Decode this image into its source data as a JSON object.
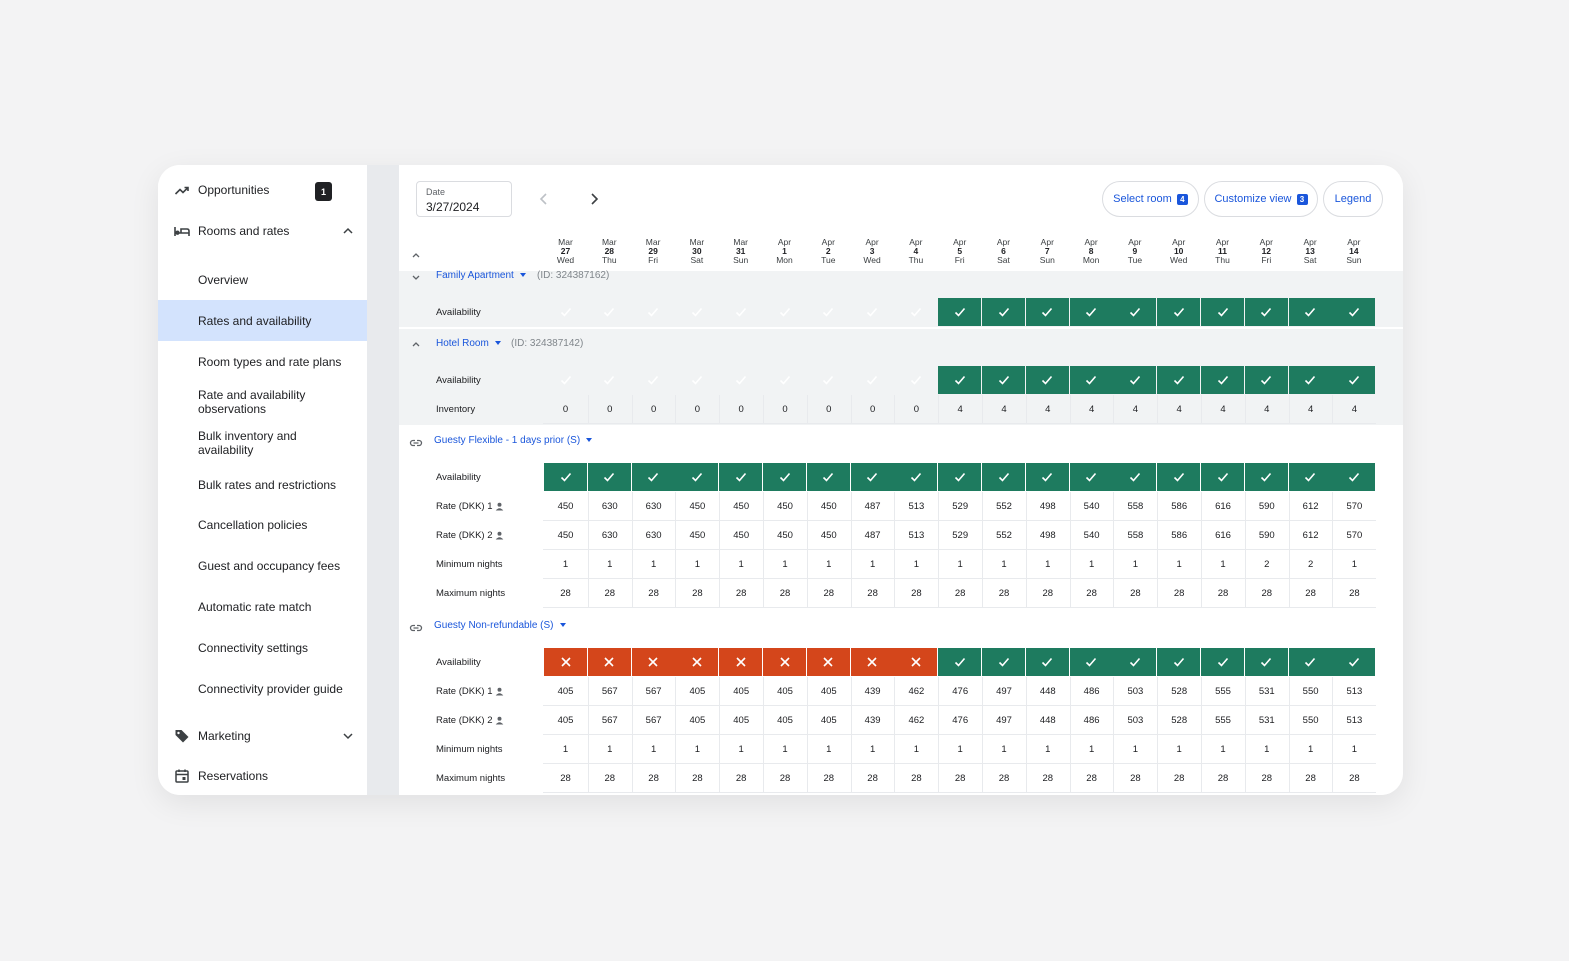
{
  "sidebar": {
    "opportunities": {
      "label": "Opportunities",
      "badge": "1"
    },
    "rooms_and_rates": {
      "label": "Rooms and rates"
    },
    "items": [
      {
        "label": "Overview"
      },
      {
        "label": "Rates and availability"
      },
      {
        "label": "Room types and rate plans"
      },
      {
        "label": "Rate and availability observations"
      },
      {
        "label": "Bulk inventory and availability"
      },
      {
        "label": "Bulk rates and restrictions"
      },
      {
        "label": "Cancellation policies"
      },
      {
        "label": "Guest and occupancy fees"
      },
      {
        "label": "Automatic rate match"
      },
      {
        "label": "Connectivity settings"
      },
      {
        "label": "Connectivity provider guide"
      }
    ],
    "marketing": {
      "label": "Marketing"
    },
    "reservations": {
      "label": "Reservations"
    }
  },
  "toolbar": {
    "date_label": "Date",
    "date_value": "3/27/2024",
    "select_room": {
      "label": "Select room",
      "count": "4"
    },
    "customize_view": {
      "label": "Customize view",
      "count": "3"
    },
    "legend": {
      "label": "Legend"
    }
  },
  "days": [
    {
      "month": "Mar",
      "day": "27",
      "dow": "Wed"
    },
    {
      "month": "Mar",
      "day": "28",
      "dow": "Thu"
    },
    {
      "month": "Mar",
      "day": "29",
      "dow": "Fri"
    },
    {
      "month": "Mar",
      "day": "30",
      "dow": "Sat"
    },
    {
      "month": "Mar",
      "day": "31",
      "dow": "Sun"
    },
    {
      "month": "Apr",
      "day": "1",
      "dow": "Mon"
    },
    {
      "month": "Apr",
      "day": "2",
      "dow": "Tue"
    },
    {
      "month": "Apr",
      "day": "3",
      "dow": "Wed"
    },
    {
      "month": "Apr",
      "day": "4",
      "dow": "Thu"
    },
    {
      "month": "Apr",
      "day": "5",
      "dow": "Fri"
    },
    {
      "month": "Apr",
      "day": "6",
      "dow": "Sat"
    },
    {
      "month": "Apr",
      "day": "7",
      "dow": "Sun"
    },
    {
      "month": "Apr",
      "day": "8",
      "dow": "Mon"
    },
    {
      "month": "Apr",
      "day": "9",
      "dow": "Tue"
    },
    {
      "month": "Apr",
      "day": "10",
      "dow": "Wed"
    },
    {
      "month": "Apr",
      "day": "11",
      "dow": "Thu"
    },
    {
      "month": "Apr",
      "day": "12",
      "dow": "Fri"
    },
    {
      "month": "Apr",
      "day": "13",
      "dow": "Sat"
    },
    {
      "month": "Apr",
      "day": "14",
      "dow": "Sun"
    }
  ],
  "availability_legend": {
    "ok": "#1e7b5f",
    "partial": "#f0a823",
    "closed": "#d4461b"
  },
  "rooms": [
    {
      "name": "Family Apartment",
      "id_text": "(ID: 324387162)",
      "availability_label": "Availability",
      "availability": [
        "partial",
        "partial",
        "partial",
        "partial",
        "partial",
        "partial",
        "partial",
        "partial",
        "partial",
        "ok",
        "ok",
        "ok",
        "ok",
        "ok",
        "ok",
        "ok",
        "ok",
        "ok",
        "ok"
      ]
    },
    {
      "name": "Hotel Room",
      "id_text": "(ID: 324387142)",
      "availability_label": "Availability",
      "availability": [
        "partial",
        "partial",
        "partial",
        "partial",
        "partial",
        "partial",
        "partial",
        "partial",
        "partial",
        "ok",
        "ok",
        "ok",
        "ok",
        "ok",
        "ok",
        "ok",
        "ok",
        "ok",
        "ok"
      ],
      "inventory_label": "Inventory",
      "inventory": [
        "0",
        "0",
        "0",
        "0",
        "0",
        "0",
        "0",
        "0",
        "0",
        "4",
        "4",
        "4",
        "4",
        "4",
        "4",
        "4",
        "4",
        "4",
        "4"
      ]
    }
  ],
  "rate_plans": [
    {
      "name": "Guesty Flexible - 1 days prior (S)",
      "availability_label": "Availability",
      "availability": [
        "ok",
        "ok",
        "ok",
        "ok",
        "ok",
        "ok",
        "ok",
        "ok",
        "ok",
        "ok",
        "ok",
        "ok",
        "ok",
        "ok",
        "ok",
        "ok",
        "ok",
        "ok",
        "ok"
      ],
      "rows": [
        {
          "label": "Rate (DKK) 1",
          "person": true,
          "values": [
            "450",
            "630",
            "630",
            "450",
            "450",
            "450",
            "450",
            "487",
            "513",
            "529",
            "552",
            "498",
            "540",
            "558",
            "586",
            "616",
            "590",
            "612",
            "570"
          ]
        },
        {
          "label": "Rate (DKK) 2",
          "person": true,
          "values": [
            "450",
            "630",
            "630",
            "450",
            "450",
            "450",
            "450",
            "487",
            "513",
            "529",
            "552",
            "498",
            "540",
            "558",
            "586",
            "616",
            "590",
            "612",
            "570"
          ]
        },
        {
          "label": "Minimum nights",
          "person": false,
          "values": [
            "1",
            "1",
            "1",
            "1",
            "1",
            "1",
            "1",
            "1",
            "1",
            "1",
            "1",
            "1",
            "1",
            "1",
            "1",
            "1",
            "2",
            "2",
            "1"
          ]
        },
        {
          "label": "Maximum nights",
          "person": false,
          "values": [
            "28",
            "28",
            "28",
            "28",
            "28",
            "28",
            "28",
            "28",
            "28",
            "28",
            "28",
            "28",
            "28",
            "28",
            "28",
            "28",
            "28",
            "28",
            "28"
          ]
        }
      ]
    },
    {
      "name": "Guesty Non-refundable (S)",
      "availability_label": "Availability",
      "availability": [
        "no",
        "no",
        "no",
        "no",
        "no",
        "no",
        "no",
        "no",
        "no",
        "ok",
        "ok",
        "ok",
        "ok",
        "ok",
        "ok",
        "ok",
        "ok",
        "ok",
        "ok"
      ],
      "rows": [
        {
          "label": "Rate (DKK) 1",
          "person": true,
          "values": [
            "405",
            "567",
            "567",
            "405",
            "405",
            "405",
            "405",
            "439",
            "462",
            "476",
            "497",
            "448",
            "486",
            "503",
            "528",
            "555",
            "531",
            "550",
            "513"
          ]
        },
        {
          "label": "Rate (DKK) 2",
          "person": true,
          "values": [
            "405",
            "567",
            "567",
            "405",
            "405",
            "405",
            "405",
            "439",
            "462",
            "476",
            "497",
            "448",
            "486",
            "503",
            "528",
            "555",
            "531",
            "550",
            "513"
          ]
        },
        {
          "label": "Minimum nights",
          "person": false,
          "values": [
            "1",
            "1",
            "1",
            "1",
            "1",
            "1",
            "1",
            "1",
            "1",
            "1",
            "1",
            "1",
            "1",
            "1",
            "1",
            "1",
            "1",
            "1",
            "1"
          ]
        },
        {
          "label": "Maximum nights",
          "person": false,
          "values": [
            "28",
            "28",
            "28",
            "28",
            "28",
            "28",
            "28",
            "28",
            "28",
            "28",
            "28",
            "28",
            "28",
            "28",
            "28",
            "28",
            "28",
            "28",
            "28"
          ]
        }
      ]
    }
  ]
}
